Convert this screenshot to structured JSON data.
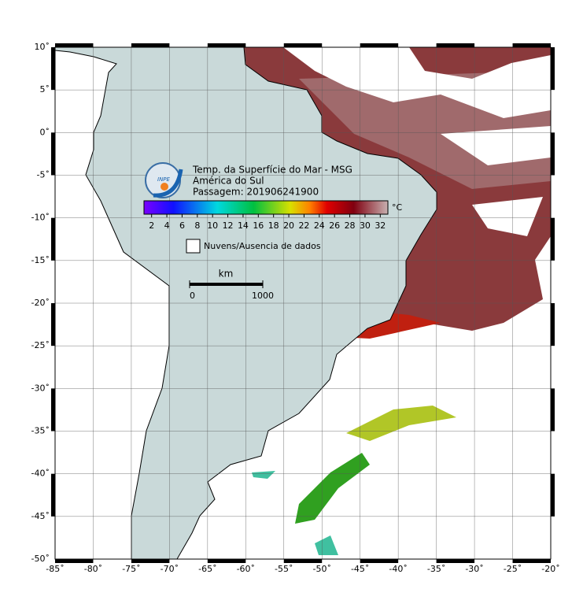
{
  "map": {
    "title": "Temp. da Superfície do Mar - MSG",
    "subtitle": "América do Sul",
    "pass": "Passagem: 201906241900",
    "logo": "INPE",
    "colorbar": {
      "unit": "°C",
      "lim": [
        1,
        33
      ],
      "ticks": [
        2,
        4,
        6,
        8,
        10,
        12,
        14,
        16,
        18,
        20,
        22,
        24,
        26,
        28,
        30,
        32
      ]
    },
    "legend": "Nuvens/Ausencia de dados",
    "scale_bar": {
      "unit": "km",
      "ticks": [
        0,
        1000
      ]
    },
    "xlim": [
      -85,
      -20
    ],
    "ylim": [
      -50,
      10
    ],
    "xticks": [
      {
        "value": -85,
        "label": "-85˚"
      },
      {
        "value": -80,
        "label": "-80˚"
      },
      {
        "value": -75,
        "label": "-75˚"
      },
      {
        "value": -70,
        "label": "-70˚"
      },
      {
        "value": -65,
        "label": "-65˚"
      },
      {
        "value": -60,
        "label": "-60˚"
      },
      {
        "value": -55,
        "label": "-55˚"
      },
      {
        "value": -50,
        "label": "-50˚"
      },
      {
        "value": -45,
        "label": "-45˚"
      },
      {
        "value": -40,
        "label": "-40˚"
      },
      {
        "value": -35,
        "label": "-35˚"
      },
      {
        "value": -30,
        "label": "-30˚"
      },
      {
        "value": -25,
        "label": "-25˚"
      },
      {
        "value": -20,
        "label": "-20˚"
      }
    ],
    "yticks": [
      {
        "value": 10,
        "label": "10˚"
      },
      {
        "value": 5,
        "label": "5˚"
      },
      {
        "value": 0,
        "label": "0˚"
      },
      {
        "value": -5,
        "label": "-5˚"
      },
      {
        "value": -10,
        "label": "-10˚"
      },
      {
        "value": -15,
        "label": "-15˚"
      },
      {
        "value": -20,
        "label": "-20˚"
      },
      {
        "value": -25,
        "label": "-25˚"
      },
      {
        "value": -30,
        "label": "-30˚"
      },
      {
        "value": -35,
        "label": "-35˚"
      },
      {
        "value": -40,
        "label": "-40˚"
      },
      {
        "value": -45,
        "label": "-45˚"
      },
      {
        "value": -50,
        "label": "-50˚"
      }
    ]
  }
}
